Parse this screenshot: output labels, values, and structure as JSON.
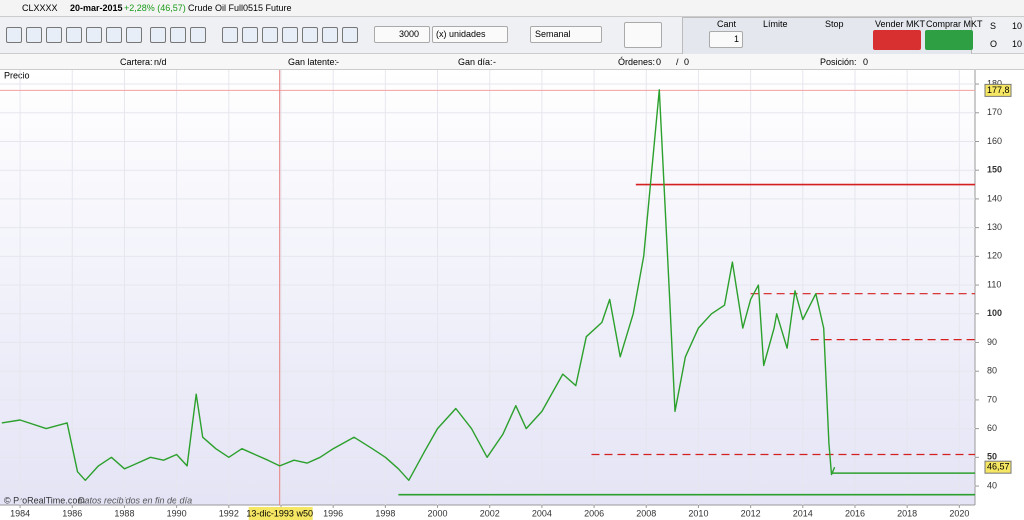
{
  "header": {
    "symbol": "CLXXXX",
    "date": "20-mar-2015",
    "change": "+2,28% (46,57)",
    "name": "Crude Oil Full0515 Future"
  },
  "toolbar": {
    "quantity": "3000",
    "units": "(x) unidades",
    "period": "Semanal",
    "cant_label": "Cant",
    "cant": "1",
    "limit": "Límite",
    "stop": "Stop",
    "sell": "Vender MKT",
    "buy": "Comprar MKT",
    "s_label": "S",
    "s_value": "10",
    "o_label": "O",
    "o_value": "10"
  },
  "info": {
    "portfolio_label": "Cartera:",
    "portfolio": "n/d",
    "latent_label": "Gan latente:",
    "latent": "-",
    "day_label": "Gan día:",
    "day": "-",
    "orders_label": "Órdenes:",
    "orders_a": "0",
    "orders_sep": "/",
    "orders_b": "0",
    "position_label": "Posición:",
    "position": "0"
  },
  "panel_label": "Precio",
  "footer": {
    "source": "© ProRealTime.com",
    "note": "Datos recibidos en fin de día"
  },
  "chart_data": {
    "type": "line",
    "x": [
      1983.3,
      1984,
      1985,
      1985.8,
      1986.2,
      1986.5,
      1987,
      1987.5,
      1988,
      1988.5,
      1989,
      1989.5,
      1990,
      1990.4,
      1990.75,
      1991,
      1991.5,
      1992,
      1992.5,
      1993,
      1993.5,
      1993.95,
      1994.5,
      1995,
      1995.5,
      1996,
      1996.8,
      1997.5,
      1998,
      1998.5,
      1998.9,
      1999.5,
      2000,
      2000.7,
      2001.3,
      2001.9,
      2002.5,
      2003,
      2003.4,
      2004,
      2004.8,
      2005.3,
      2005.7,
      2006.3,
      2006.6,
      2007,
      2007.5,
      2007.9,
      2008.5,
      2008.9,
      2009.1,
      2009.5,
      2010,
      2010.5,
      2011,
      2011.3,
      2011.7,
      2012,
      2012.3,
      2012.5,
      2012.9,
      2013,
      2013.4,
      2013.7,
      2014,
      2014.5,
      2014.8,
      2015,
      2015.1,
      2015.22
    ],
    "series": [
      {
        "color": "#2ca02c",
        "values": [
          62,
          63,
          60,
          62,
          45,
          42,
          47,
          50,
          46,
          48,
          50,
          49,
          51,
          47,
          72,
          57,
          53,
          50,
          53,
          51,
          49,
          47,
          49,
          48,
          50,
          53,
          57,
          53,
          50,
          46,
          42,
          52,
          60,
          67,
          60,
          50,
          58,
          68,
          60,
          66,
          79,
          75,
          92,
          97,
          105,
          85,
          100,
          120,
          178,
          105,
          66,
          85,
          95,
          100,
          103,
          118,
          95,
          105,
          110,
          82,
          95,
          100,
          88,
          108,
          98,
          107,
          95,
          55,
          44,
          46.57
        ]
      }
    ],
    "xlim": [
      1983.23,
      2020.6
    ],
    "ylim": [
      33.4,
      184.2
    ],
    "xticks": [
      1984,
      1986,
      1988,
      1990,
      1992,
      1994,
      1996,
      1998,
      2000,
      2002,
      2004,
      2006,
      2008,
      2010,
      2012,
      2014,
      2016,
      2018,
      2020
    ],
    "yticks": [
      40,
      50,
      60,
      70,
      80,
      90,
      100,
      110,
      120,
      130,
      140,
      150,
      160,
      170,
      180
    ],
    "grid": true,
    "crosshair": {
      "x": 1993.95,
      "label": "13-dic-1993 w50"
    },
    "price_markers": [
      {
        "value": 177.8,
        "label": "177,8"
      },
      {
        "value": 46.57,
        "label": "46,57"
      }
    ],
    "levels": [
      {
        "value": 145,
        "from": 2007.6,
        "style": "solid",
        "color": "#d61f1f"
      },
      {
        "value": 107,
        "from": 2012,
        "style": "dashed",
        "color": "#d61f1f"
      },
      {
        "value": 91,
        "from": 2014.3,
        "style": "dashed",
        "color": "#d61f1f"
      },
      {
        "value": 51,
        "from": 2005.9,
        "style": "dashed",
        "color": "#d61f1f"
      },
      {
        "value": 44.5,
        "from": 2015.1,
        "style": "solid",
        "color": "#2ca02c"
      },
      {
        "value": 37,
        "from": 1998.5,
        "style": "solid",
        "color": "#2ca02c"
      }
    ]
  }
}
